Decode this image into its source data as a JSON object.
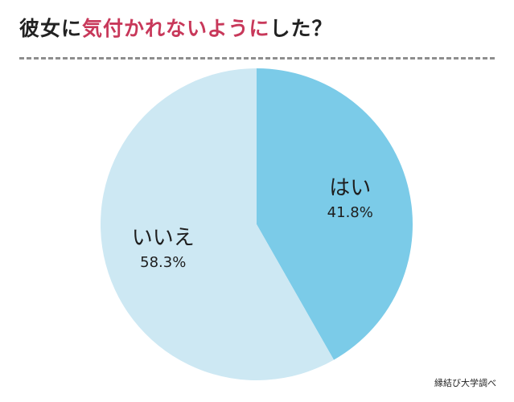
{
  "title": {
    "part1": "彼女に",
    "highlight": "気付かれないように",
    "part3": "した？"
  },
  "source": "縁結び大学調べ",
  "colors": {
    "title_highlight": "#c8385a",
    "divider": "#8e8e8e"
  },
  "chart_data": {
    "type": "pie",
    "title": "彼女に気付かれないようにした？",
    "slices": [
      {
        "label": "はい",
        "value": 41.8,
        "value_label": "41.8%",
        "color": "#7bcbe8"
      },
      {
        "label": "いいえ",
        "value": 58.3,
        "value_label": "58.3%",
        "color": "#cde8f3"
      }
    ],
    "start_angle": "12 o'clock, clockwise",
    "legend": "none"
  }
}
